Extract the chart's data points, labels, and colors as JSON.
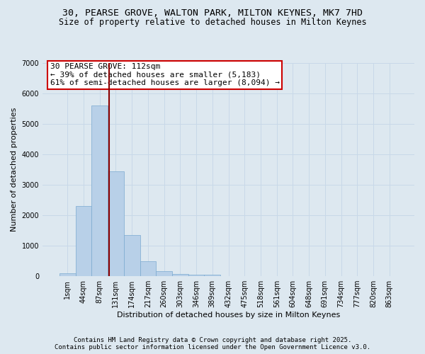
{
  "title_line1": "30, PEARSE GROVE, WALTON PARK, MILTON KEYNES, MK7 7HD",
  "title_line2": "Size of property relative to detached houses in Milton Keynes",
  "xlabel": "Distribution of detached houses by size in Milton Keynes",
  "ylabel": "Number of detached properties",
  "categories": [
    "1sqm",
    "44sqm",
    "87sqm",
    "131sqm",
    "174sqm",
    "217sqm",
    "260sqm",
    "303sqm",
    "346sqm",
    "389sqm",
    "432sqm",
    "475sqm",
    "518sqm",
    "561sqm",
    "604sqm",
    "648sqm",
    "691sqm",
    "734sqm",
    "777sqm",
    "820sqm",
    "863sqm"
  ],
  "values": [
    100,
    2300,
    5600,
    3450,
    1350,
    480,
    170,
    80,
    50,
    50,
    0,
    0,
    0,
    0,
    0,
    0,
    0,
    0,
    0,
    0,
    0
  ],
  "bar_color": "#b8d0e8",
  "bar_edge_color": "#7aaad0",
  "vline_x_index": 2.57,
  "vline_color": "#8b0000",
  "annotation_text": "30 PEARSE GROVE: 112sqm\n← 39% of detached houses are smaller (5,183)\n61% of semi-detached houses are larger (8,094) →",
  "annotation_box_facecolor": "#ffffff",
  "annotation_box_edgecolor": "#cc0000",
  "ylim": [
    0,
    7000
  ],
  "yticks": [
    0,
    1000,
    2000,
    3000,
    4000,
    5000,
    6000,
    7000
  ],
  "grid_color": "#c8d8e8",
  "bg_color": "#dde8f0",
  "footer_line1": "Contains HM Land Registry data © Crown copyright and database right 2025.",
  "footer_line2": "Contains public sector information licensed under the Open Government Licence v3.0.",
  "title1_fontsize": 9.5,
  "title2_fontsize": 8.5,
  "axis_label_fontsize": 8,
  "tick_fontsize": 7,
  "annotation_fontsize": 8,
  "footer_fontsize": 6.5
}
